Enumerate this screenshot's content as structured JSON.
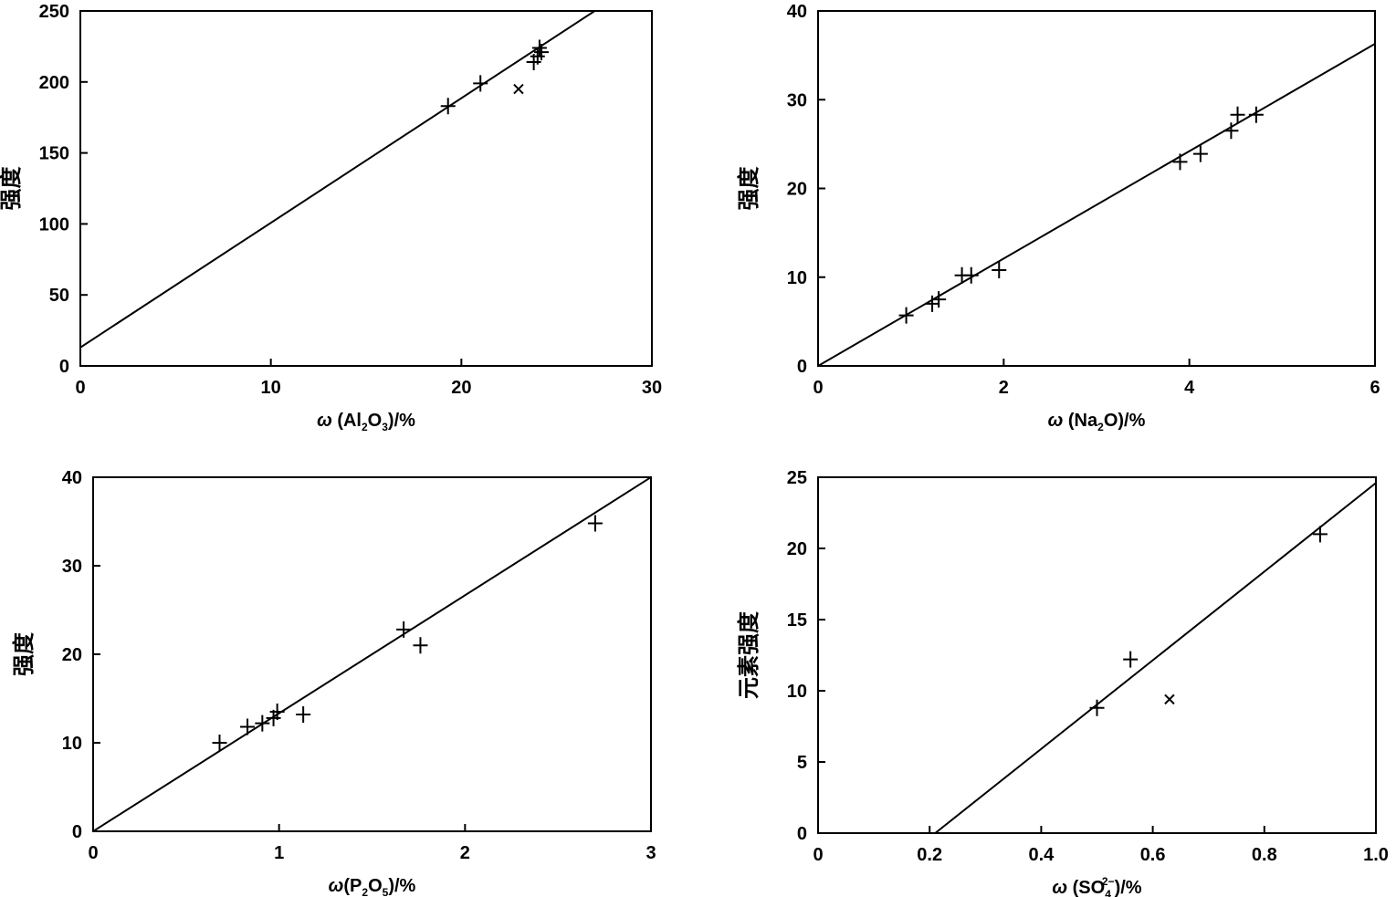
{
  "chart_data": [
    {
      "type": "scatter",
      "xlabel": "ω (Al2O3)/%",
      "xlabel_parts": {
        "pre": "ω (Al",
        "s1": "2",
        "mid": "O",
        "s2": "3",
        "post": ")/%"
      },
      "ylabel": "强度",
      "xlim": [
        0,
        30
      ],
      "ylim": [
        0,
        250
      ],
      "xticks": [
        0,
        10,
        20,
        30
      ],
      "yticks": [
        0,
        50,
        100,
        150,
        200,
        250
      ],
      "xtick_labels": [
        "0",
        "10",
        "20",
        "30"
      ],
      "ytick_labels": [
        "0",
        "50",
        "100",
        "150",
        "200",
        "250"
      ],
      "fit_line": {
        "x": [
          0,
          27
        ],
        "y": [
          13,
          250
        ]
      },
      "points": [
        {
          "x": 19.3,
          "y": 183,
          "marker": "plus"
        },
        {
          "x": 21.0,
          "y": 199,
          "marker": "plus"
        },
        {
          "x": 23.0,
          "y": 195,
          "marker": "cross"
        },
        {
          "x": 23.8,
          "y": 214,
          "marker": "plus"
        },
        {
          "x": 24.0,
          "y": 218,
          "marker": "plus"
        },
        {
          "x": 24.1,
          "y": 224,
          "marker": "plus"
        },
        {
          "x": 24.2,
          "y": 221,
          "marker": "plus"
        }
      ]
    },
    {
      "type": "scatter",
      "xlabel": "ω (Na2O)/%",
      "xlabel_parts": {
        "pre": "ω (Na",
        "s1": "2",
        "mid": "O)/%",
        "s2": "",
        "post": ""
      },
      "ylabel": "强度",
      "xlim": [
        0,
        6
      ],
      "ylim": [
        0,
        40
      ],
      "xticks": [
        0,
        2,
        4,
        6
      ],
      "yticks": [
        0,
        10,
        20,
        30,
        40
      ],
      "xtick_labels": [
        "0",
        "2",
        "4",
        "6"
      ],
      "ytick_labels": [
        "0",
        "10",
        "20",
        "30",
        "40"
      ],
      "fit_line": {
        "x": [
          0,
          6
        ],
        "y": [
          0,
          36.3
        ]
      },
      "points": [
        {
          "x": 0.95,
          "y": 5.7,
          "marker": "plus"
        },
        {
          "x": 1.23,
          "y": 7.0,
          "marker": "plus"
        },
        {
          "x": 1.3,
          "y": 7.5,
          "marker": "plus"
        },
        {
          "x": 1.55,
          "y": 10.2,
          "marker": "plus"
        },
        {
          "x": 1.65,
          "y": 10.2,
          "marker": "plus"
        },
        {
          "x": 1.95,
          "y": 10.8,
          "marker": "plus"
        },
        {
          "x": 3.9,
          "y": 23.0,
          "marker": "plus"
        },
        {
          "x": 4.12,
          "y": 23.9,
          "marker": "plus"
        },
        {
          "x": 4.45,
          "y": 26.5,
          "marker": "plus"
        },
        {
          "x": 4.52,
          "y": 28.3,
          "marker": "plus"
        },
        {
          "x": 4.72,
          "y": 28.3,
          "marker": "plus"
        }
      ]
    },
    {
      "type": "scatter",
      "xlabel": "ω(P2O5)/%",
      "xlabel_parts": {
        "pre": "ω(P",
        "s1": "2",
        "mid": "O",
        "s2": "5",
        "post": ")/%"
      },
      "ylabel": "强度",
      "xlim": [
        0,
        3
      ],
      "ylim": [
        0,
        40
      ],
      "xticks": [
        0,
        1,
        2,
        3
      ],
      "yticks": [
        0,
        10,
        20,
        30,
        40
      ],
      "xtick_labels": [
        "0",
        "1",
        "2",
        "3"
      ],
      "ytick_labels": [
        "0",
        "10",
        "20",
        "30",
        "40"
      ],
      "fit_line": {
        "x": [
          0,
          3
        ],
        "y": [
          0,
          40
        ]
      },
      "points": [
        {
          "x": 0.68,
          "y": 10.0,
          "marker": "plus"
        },
        {
          "x": 0.83,
          "y": 11.8,
          "marker": "plus"
        },
        {
          "x": 0.91,
          "y": 12.2,
          "marker": "plus"
        },
        {
          "x": 0.97,
          "y": 12.8,
          "marker": "plus"
        },
        {
          "x": 0.99,
          "y": 13.5,
          "marker": "plus"
        },
        {
          "x": 1.13,
          "y": 13.2,
          "marker": "plus"
        },
        {
          "x": 1.67,
          "y": 22.8,
          "marker": "plus"
        },
        {
          "x": 1.76,
          "y": 21.0,
          "marker": "plus"
        },
        {
          "x": 2.7,
          "y": 34.8,
          "marker": "plus"
        }
      ]
    },
    {
      "type": "scatter",
      "xlabel": "ω (SO42−)/%",
      "xlabel_parts": {
        "pre": "ω (SO",
        "s1": "4",
        "sup": "2−",
        "mid": ")/%",
        "s2": "",
        "post": ""
      },
      "ylabel": "元素强度",
      "xlim": [
        0,
        1.0
      ],
      "ylim": [
        0,
        25
      ],
      "xticks": [
        0,
        0.2,
        0.4,
        0.6,
        0.8,
        1.0
      ],
      "yticks": [
        0,
        5,
        10,
        15,
        20,
        25
      ],
      "xtick_labels": [
        "0",
        "0.2",
        "0.4",
        "0.6",
        "0.8",
        "1.0"
      ],
      "ytick_labels": [
        "0",
        "5",
        "10",
        "15",
        "20",
        "25"
      ],
      "fit_line": {
        "x": [
          0.21,
          1.0
        ],
        "y": [
          0,
          24.6
        ]
      },
      "points": [
        {
          "x": 0.5,
          "y": 8.8,
          "marker": "plus"
        },
        {
          "x": 0.56,
          "y": 12.2,
          "marker": "plus"
        },
        {
          "x": 0.63,
          "y": 9.4,
          "marker": "cross"
        },
        {
          "x": 0.9,
          "y": 21.0,
          "marker": "plus"
        }
      ]
    }
  ]
}
